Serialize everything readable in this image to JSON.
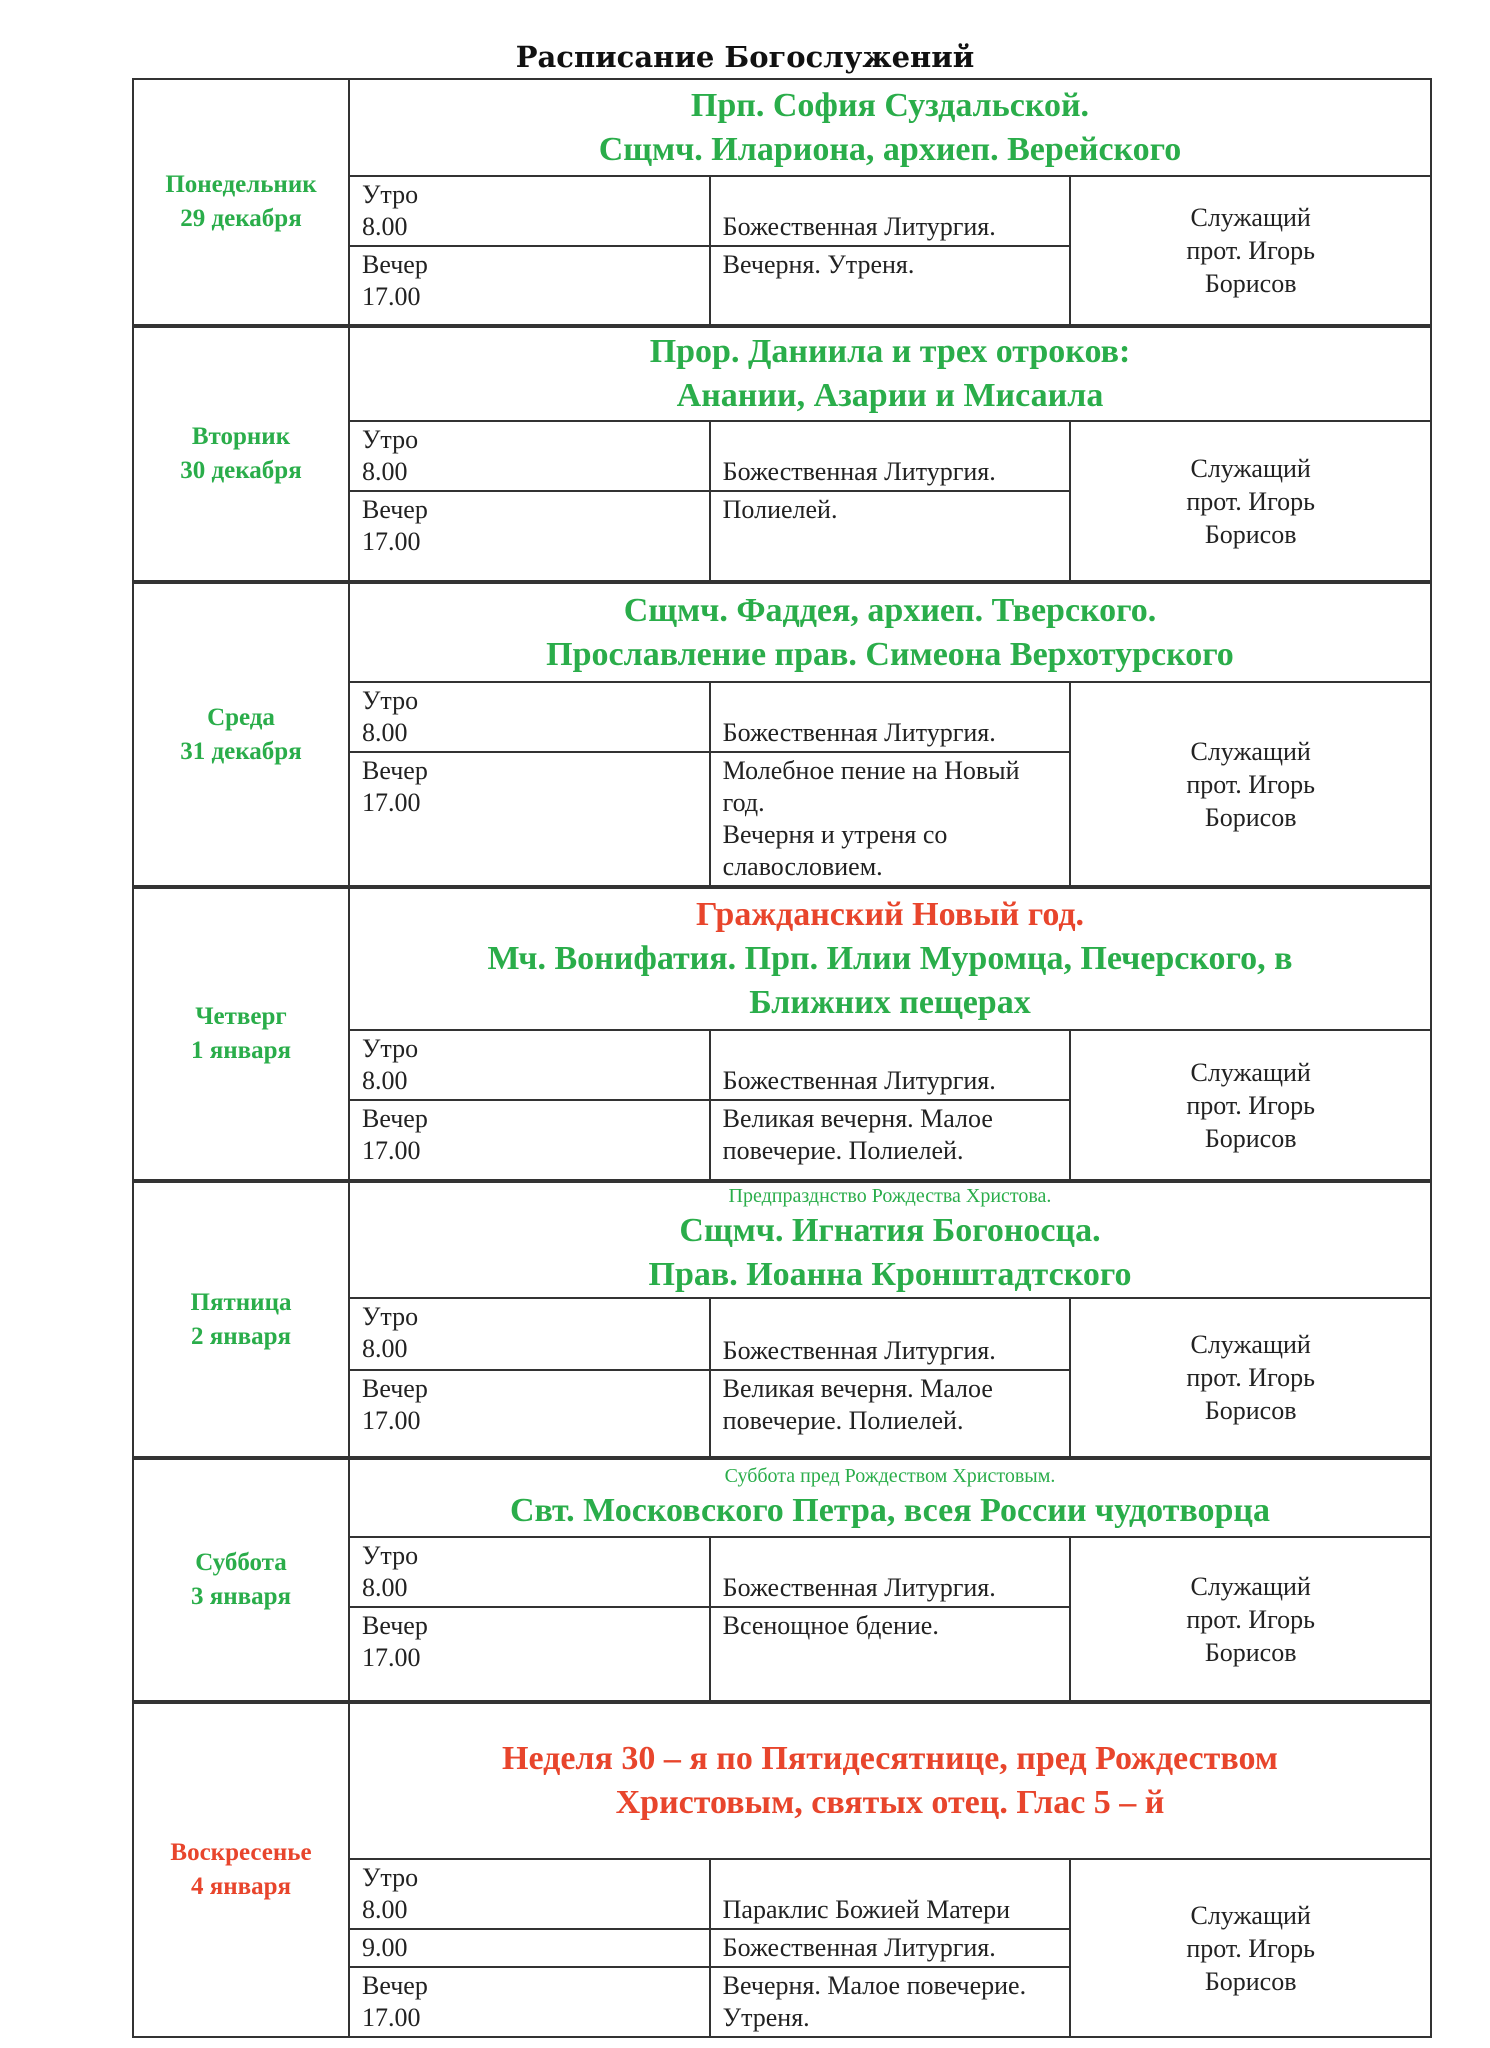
{
  "title": "Расписание Богослужений",
  "priest": [
    "Служащий",
    "прот. Игорь",
    "Борисов"
  ],
  "times": {
    "morning_label": "Утро",
    "morning_time": "8.00",
    "evening_label": "Вечер",
    "evening_time": "17.00",
    "extra_time": "9.00"
  },
  "days": [
    {
      "weekday": "Понедельник",
      "date": "29 декабря",
      "color": "#2aad4a",
      "heading": [
        "Прп. София Суздальской.",
        "Сщмч. Илариона, архиеп. Верейского"
      ],
      "morning": "Божественная Литургия.",
      "evening": [
        "Вечерня. Утреня."
      ]
    },
    {
      "weekday": "Вторник",
      "date": "30 декабря",
      "color": "#2aad4a",
      "heading": [
        "Прор. Даниила и трех отроков:",
        "Анании, Азарии и Мисаила"
      ],
      "morning": "Божественная Литургия.",
      "evening": [
        "Полиелей."
      ]
    },
    {
      "weekday": "Среда",
      "date": "31 декабря",
      "color": "#2aad4a",
      "heading": [
        "Сщмч. Фаддея, архиеп. Тверского.",
        "Прославление прав. Симеона Верхотурского"
      ],
      "morning": "Божественная Литургия.",
      "evening": [
        "Молебное пение на Новый год.",
        "Вечерня и утреня со славословием."
      ]
    },
    {
      "weekday": "Четверг",
      "date": "1 января",
      "color": "#2aad4a",
      "heading_red": "Гражданский Новый год.",
      "heading": [
        "Мч. Вонифатия. Прп. Илии Муромца, Печерского, в",
        "Ближних пещерах"
      ],
      "morning": "Божественная Литургия.",
      "evening": [
        "Великая вечерня. Малое повечерие. Полиелей."
      ]
    },
    {
      "weekday": "Пятница",
      "date": "2 января",
      "color": "#2aad4a",
      "subtitle": "Предпразднство Рождества Христова.",
      "heading": [
        "Сщмч. Игнатия Богоносца.",
        "Прав. Иоанна Кронштадтского"
      ],
      "morning": "Божественная Литургия.",
      "evening": [
        "Великая вечерня. Малое повечерие. Полиелей."
      ]
    },
    {
      "weekday": "Суббота",
      "date": "3 января",
      "color": "#2aad4a",
      "subtitle": "Суббота пред Рождеством Христовым.",
      "heading": [
        "Свт. Московского Петра, всея России чудотворца"
      ],
      "morning": "Божественная Литургия.",
      "evening": [
        "Всенощное бдение."
      ]
    },
    {
      "weekday": "Воскресенье",
      "date": "4 января",
      "color": "#e8452c",
      "heading_red_lines": [
        "Неделя  30 – я по Пятидесятнице, пред Рождеством",
        "Христовым, святых отец. Глас 5 – й"
      ],
      "morning": "Параклис Божией Матери",
      "extra": "Божественная Литургия.",
      "evening": [
        "Вечерня. Малое повечерие. Утреня."
      ]
    }
  ],
  "colors": {
    "green": "#2aad4a",
    "red": "#e8452c"
  }
}
